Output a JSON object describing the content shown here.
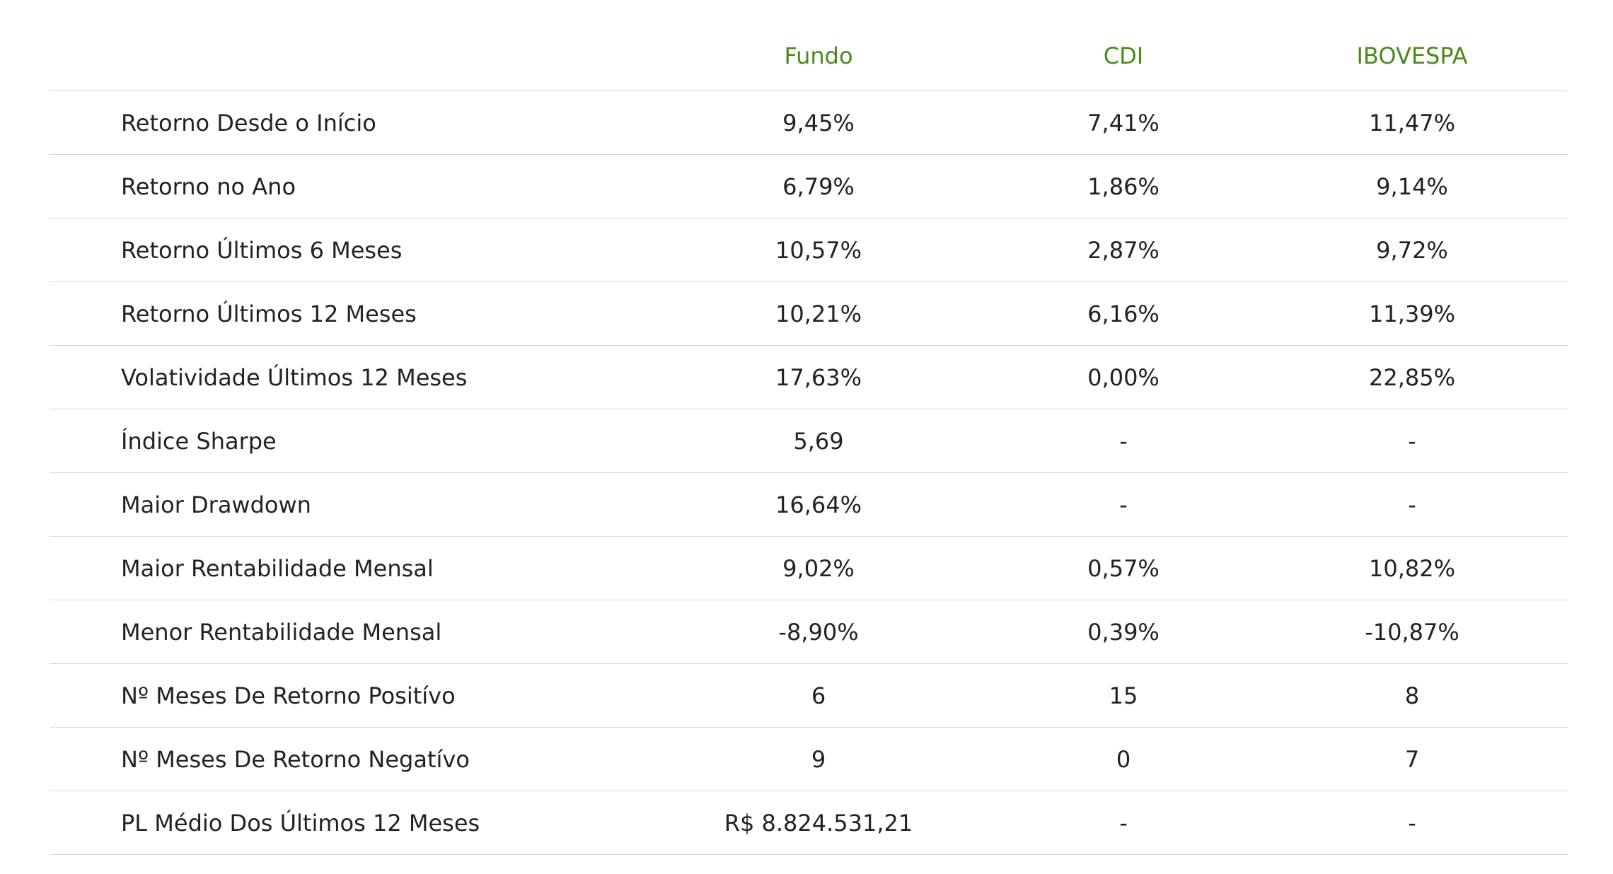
{
  "table": {
    "headers": [
      "",
      "Fundo",
      "CDI",
      "IBOVESPA"
    ],
    "rows": [
      {
        "label": "Retorno Desde o Início",
        "fundo": "9,45%",
        "cdi": "7,41%",
        "ibovespa": "11,47%"
      },
      {
        "label": "Retorno no Ano",
        "fundo": "6,79%",
        "cdi": "1,86%",
        "ibovespa": "9,14%"
      },
      {
        "label": "Retorno Últimos 6 Meses",
        "fundo": "10,57%",
        "cdi": "2,87%",
        "ibovespa": "9,72%"
      },
      {
        "label": "Retorno Últimos 12 Meses",
        "fundo": "10,21%",
        "cdi": "6,16%",
        "ibovespa": "11,39%"
      },
      {
        "label": "Volatividade Últimos 12 Meses",
        "fundo": "17,63%",
        "cdi": "0,00%",
        "ibovespa": "22,85%"
      },
      {
        "label": "Índice Sharpe",
        "fundo": "5,69",
        "cdi": "-",
        "ibovespa": "-"
      },
      {
        "label": "Maior Drawdown",
        "fundo": "16,64%",
        "cdi": "-",
        "ibovespa": "-"
      },
      {
        "label": "Maior Rentabilidade Mensal",
        "fundo": "9,02%",
        "cdi": "0,57%",
        "ibovespa": "10,82%"
      },
      {
        "label": "Menor Rentabilidade Mensal",
        "fundo": "-8,90%",
        "cdi": "0,39%",
        "ibovespa": "-10,87%"
      },
      {
        "label": "Nº Meses De Retorno Positívo",
        "fundo": "6",
        "cdi": "15",
        "ibovespa": "8"
      },
      {
        "label": "Nº Meses De Retorno Negatívo",
        "fundo": "9",
        "cdi": "0",
        "ibovespa": "7"
      },
      {
        "label": "PL Médio Dos Últimos 12 Meses",
        "fundo": "R$ 8.824.531,21",
        "cdi": "-",
        "ibovespa": "-"
      }
    ]
  },
  "colors": {
    "header_text": "#4a8a1c",
    "body_text": "#222222",
    "divider": "#d8d8d8"
  }
}
